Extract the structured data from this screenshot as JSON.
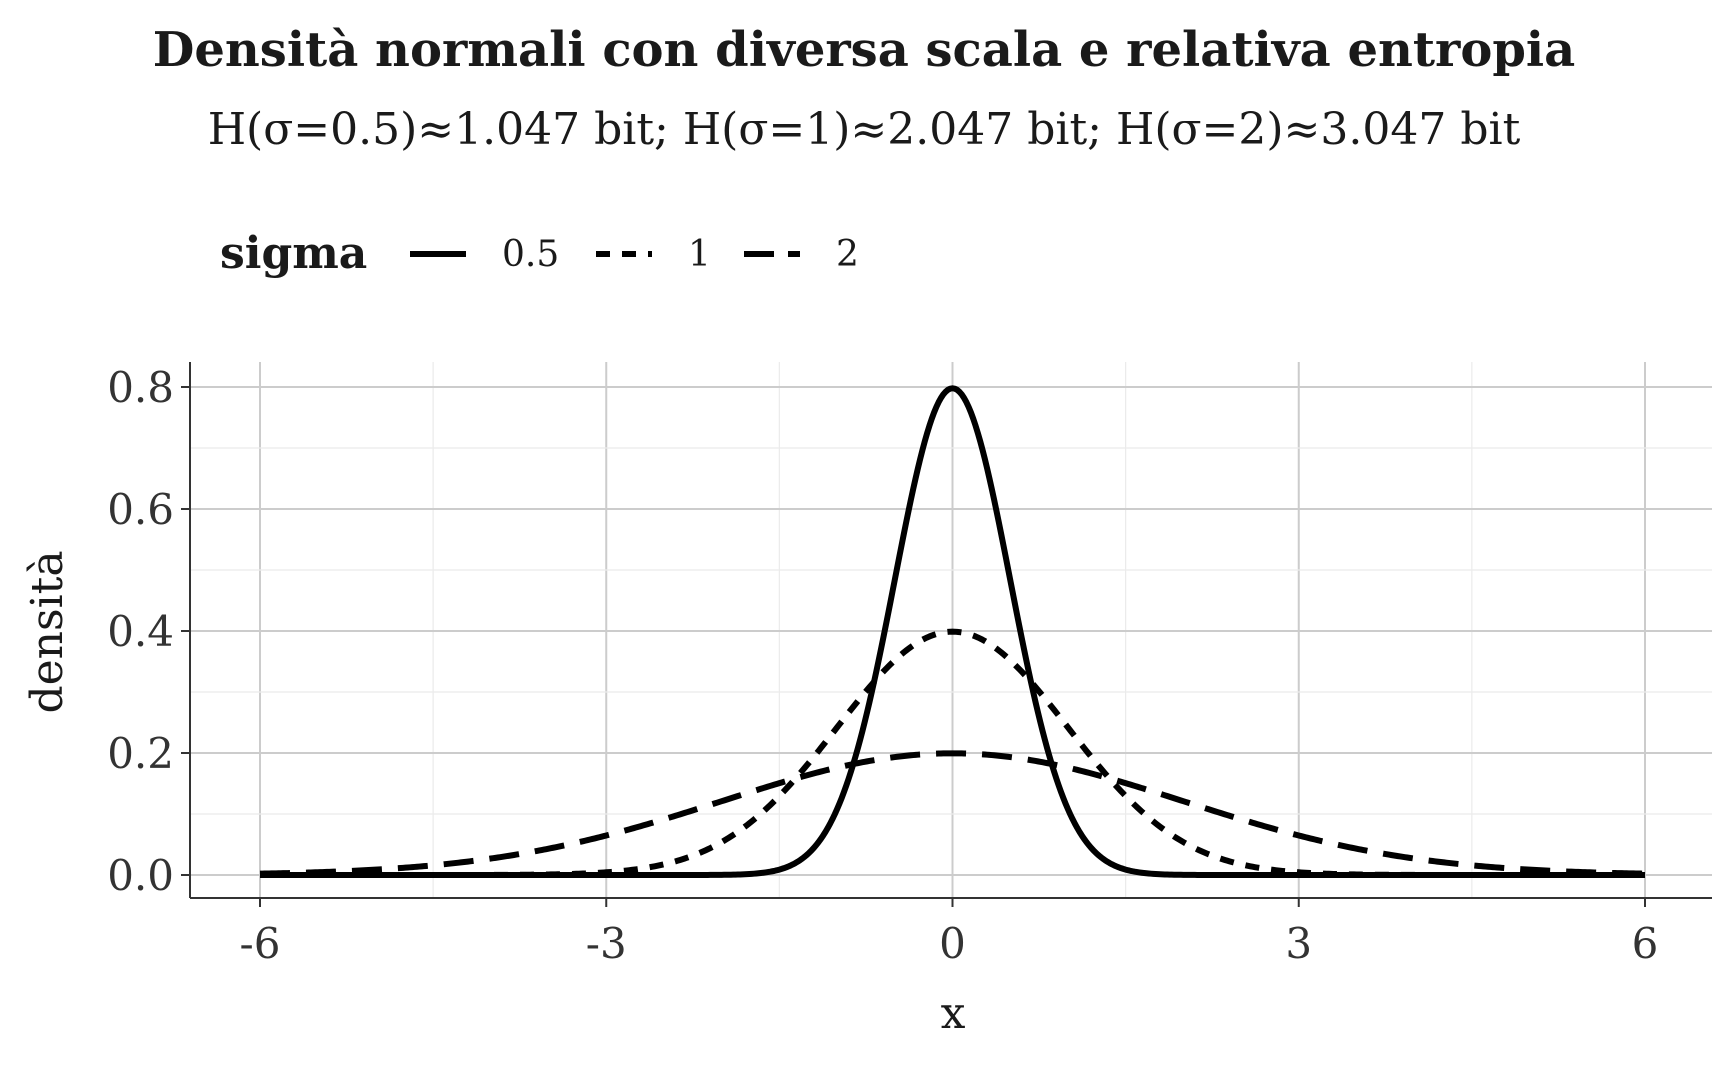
{
  "chart_data": {
    "type": "line",
    "title": "Densità normali con diversa scala e relativa entropia",
    "subtitle": "H(σ=0.5)≈1.047 bit; H(σ=1)≈2.047 bit; H(σ=2)≈3.047 bit",
    "xlabel": "x",
    "ylabel": "densità",
    "xlim": [
      -6,
      6
    ],
    "ylim": [
      0,
      0.8
    ],
    "x_ticks": [
      "-6",
      "-3",
      "0",
      "3",
      "6"
    ],
    "y_ticks": [
      "0.0",
      "0.2",
      "0.4",
      "0.6",
      "0.8"
    ],
    "grid": true,
    "legend": {
      "title": "sigma",
      "placement": "top-left"
    },
    "series": [
      {
        "name": "0.5",
        "sigma": 0.5,
        "line_style": "solid",
        "x": [
          -6,
          -3,
          -2,
          -1.5,
          -1,
          -0.75,
          -0.5,
          -0.25,
          0,
          0.25,
          0.5,
          0.75,
          1,
          1.5,
          2,
          3,
          6
        ],
        "y": [
          0.0,
          0.0,
          0.0003,
          0.0089,
          0.108,
          0.259,
          0.484,
          0.704,
          0.798,
          0.704,
          0.484,
          0.259,
          0.108,
          0.0089,
          0.0003,
          0.0,
          0.0
        ]
      },
      {
        "name": "1",
        "sigma": 1,
        "line_style": "dotted",
        "x": [
          -6,
          -4,
          -3,
          -2.5,
          -2,
          -1.5,
          -1,
          -0.5,
          0,
          0.5,
          1,
          1.5,
          2,
          2.5,
          3,
          4,
          6
        ],
        "y": [
          0.0,
          0.0001,
          0.0044,
          0.0175,
          0.054,
          0.1295,
          0.242,
          0.352,
          0.399,
          0.352,
          0.242,
          0.1295,
          0.054,
          0.0175,
          0.0044,
          0.0001,
          0.0
        ]
      },
      {
        "name": "2",
        "sigma": 2,
        "line_style": "dashed",
        "x": [
          -6,
          -5,
          -4,
          -3,
          -2,
          -1,
          0,
          1,
          2,
          3,
          4,
          5,
          6
        ],
        "y": [
          0.0022,
          0.0088,
          0.027,
          0.0648,
          0.121,
          0.176,
          0.1995,
          0.176,
          0.121,
          0.0648,
          0.027,
          0.0088,
          0.0022
        ]
      }
    ]
  }
}
